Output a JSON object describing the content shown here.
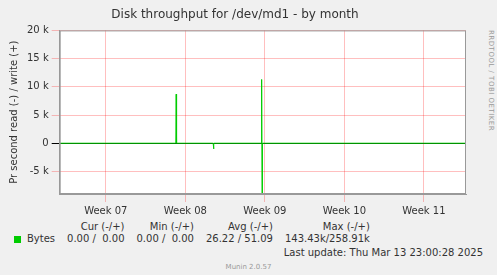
{
  "chart_data": {
    "type": "line",
    "title": "Disk throughput for /dev/md1 - by month",
    "y_label": "Pr second read (-) / write (+)",
    "x": [
      6.42,
      7.88,
      7.885,
      7.89,
      8.35,
      8.355,
      8.36,
      8.955,
      8.96,
      8.965,
      8.97,
      11.53
    ],
    "series": [
      {
        "name": "Bytes",
        "color": "#00cc00",
        "values": [
          0,
          0,
          8700,
          0,
          0,
          -1000,
          0,
          0,
          11300,
          -8900,
          0,
          0
        ]
      }
    ],
    "xlim": [
      6.42,
      11.53
    ],
    "xticks": [
      {
        "value": 7,
        "label": "Week 07"
      },
      {
        "value": 8,
        "label": "Week 08"
      },
      {
        "value": 9,
        "label": "Week 09"
      },
      {
        "value": 10,
        "label": "Week 10"
      },
      {
        "value": 11,
        "label": "Week 11"
      }
    ],
    "ylim": [
      -9000,
      20000
    ],
    "yticks": [
      {
        "value": -5000,
        "label": "-5 k"
      },
      0,
      {
        "value": 5000,
        "label": "5 k"
      },
      {
        "value": 10000,
        "label": "10 k"
      },
      {
        "value": 15000,
        "label": "15 k"
      },
      {
        "value": 20000,
        "label": "20 k"
      }
    ],
    "grid": true,
    "summary": {
      "headers": [
        "Cur (-/+)",
        "Min (-/+)",
        "Avg (-/+)",
        "Max (-/+)"
      ],
      "rows": [
        {
          "name": "Bytes",
          "cells": [
            "0.00 /  0.00",
            "0.00 /  0.00",
            "26.22 / 51.09",
            "143.43k/258.91k"
          ]
        }
      ]
    },
    "annotations": [
      "Last update: Thu Mar 13 23:00:28 2025",
      "Munin 2.0.57",
      "RRDTOOL / TOBI OETIKER"
    ]
  }
}
